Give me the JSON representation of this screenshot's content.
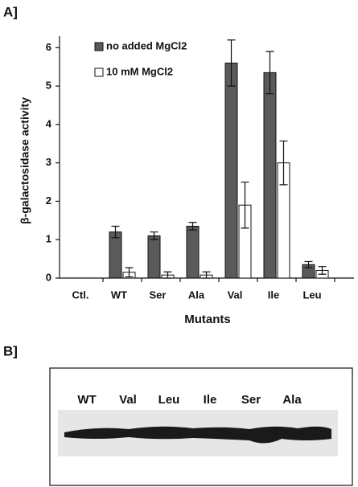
{
  "chart_data": {
    "type": "bar",
    "panel_label": "A]",
    "y_label": "β-galactosidase activity",
    "x_label": "Mutants",
    "categories": [
      "Ctl.",
      "WT",
      "Ser",
      "Ala",
      "Val",
      "Ile",
      "Leu"
    ],
    "series": [
      {
        "name": "no added MgCl2",
        "color": "#5a5a5a",
        "values": [
          null,
          1.2,
          1.1,
          1.35,
          5.6,
          5.35,
          0.35
        ],
        "errors": [
          null,
          0.15,
          0.1,
          0.1,
          0.6,
          0.55,
          0.08
        ]
      },
      {
        "name": "10 mM MgCl2",
        "color": "#ffffff",
        "values": [
          null,
          0.15,
          0.08,
          0.08,
          1.9,
          3.0,
          0.2
        ],
        "errors": [
          null,
          0.12,
          0.08,
          0.08,
          0.6,
          0.57,
          0.1
        ]
      }
    ],
    "ylim": [
      0,
      6.3
    ],
    "yticks": [
      0,
      1,
      2,
      3,
      4,
      5,
      6
    ],
    "legend": "upper left"
  },
  "blot": {
    "panel_label": "B]",
    "lanes": [
      "WT",
      "Val",
      "Leu",
      "Ile",
      "Ser",
      "Ala"
    ]
  }
}
